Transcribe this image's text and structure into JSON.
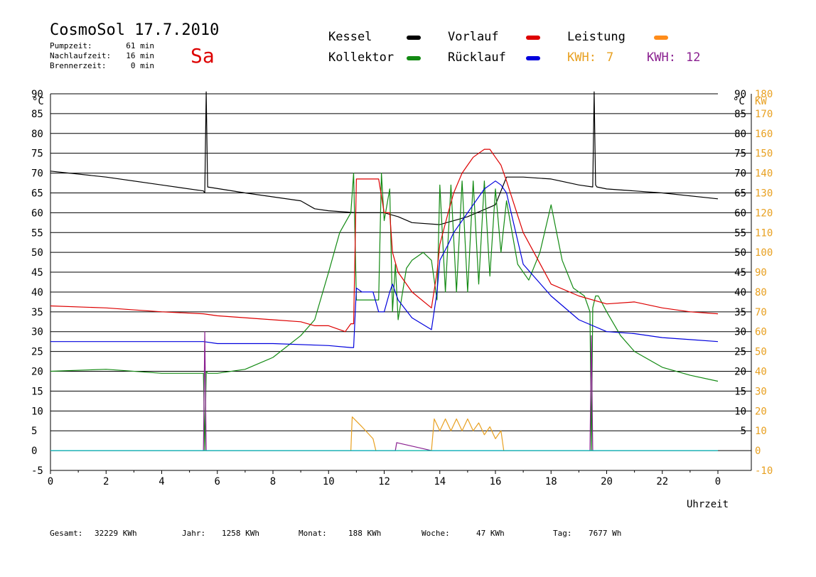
{
  "header": {
    "title": "CosmoSol 17.7.2010",
    "weekday": "Sa",
    "stats": [
      {
        "label": "Pumpzeit:",
        "value": "61 min"
      },
      {
        "label": "Nachlaufzeit:",
        "value": "16 min"
      },
      {
        "label": "Brennerzeit:",
        "value": "0 min"
      }
    ]
  },
  "legend": {
    "kessel": {
      "label": "Kessel",
      "color": "#000000"
    },
    "vorlauf": {
      "label": "Vorlauf",
      "color": "#dd0000"
    },
    "leistung": {
      "label": "Leistung",
      "color": "#ff8c1a"
    },
    "kollektor": {
      "label": "Kollektor",
      "color": "#138a13"
    },
    "ruecklauf": {
      "label": "Rücklauf",
      "color": "#0000dd"
    },
    "kwh1": {
      "label": "KWH:",
      "value": "7",
      "color": "#e8a020"
    },
    "kwh2": {
      "label": "KWH:",
      "value": "12",
      "color": "#8a2090"
    }
  },
  "footer": [
    {
      "label": "Gesamt:",
      "value": "32229 KWh"
    },
    {
      "label": "Jahr:",
      "value": "1258 KWh"
    },
    {
      "label": "Monat:",
      "value": "188 KWh"
    },
    {
      "label": "Woche:",
      "value": "47 KWh"
    },
    {
      "label": "Tag:",
      "value": "7677 Wh"
    }
  ],
  "chart_data": {
    "type": "line",
    "xlabel": "Uhrzeit",
    "ylabel_left": "°C",
    "ylabel_right_c": "°C",
    "ylabel_right_kw": "KW",
    "xlim": [
      0,
      24
    ],
    "ylim": [
      -5,
      90
    ],
    "x_tick_labels": [
      "0",
      "2",
      "4",
      "6",
      "8",
      "10",
      "12",
      "14",
      "16",
      "18",
      "20",
      "22",
      "0"
    ],
    "y_ticks": [
      -5,
      0,
      5,
      10,
      15,
      20,
      25,
      30,
      35,
      40,
      45,
      50,
      55,
      60,
      65,
      70,
      75,
      80,
      85,
      90
    ],
    "right_c_ticks": [
      5,
      10,
      15,
      20,
      25,
      30,
      35,
      40,
      45,
      50,
      55,
      60,
      65,
      70,
      75,
      80,
      85,
      90
    ],
    "right_kw_ticks": [
      -10,
      0,
      10,
      20,
      30,
      40,
      50,
      60,
      70,
      80,
      90,
      100,
      110,
      120,
      130,
      140,
      150,
      160,
      170,
      180
    ],
    "grid": true,
    "series": [
      {
        "key": "kessel",
        "color": "#000000",
        "x": [
          0,
          2,
          4,
          5.5,
          5.55,
          5.6,
          5.65,
          7,
          9,
          9.5,
          10,
          11,
          12,
          12.5,
          13,
          14,
          15,
          16,
          16.4,
          17,
          18,
          19,
          19.5,
          19.55,
          19.6,
          19.65,
          20,
          22,
          24
        ],
        "y": [
          70.5,
          69,
          67,
          65.5,
          65,
          90.5,
          66.5,
          65,
          63,
          61,
          60.5,
          60,
          60,
          59,
          57.5,
          57,
          59,
          62,
          69,
          69,
          68.5,
          67,
          66.5,
          90.5,
          67,
          66.5,
          66,
          65,
          63.5
        ]
      },
      {
        "key": "kollektor",
        "color": "#138a13",
        "x": [
          0,
          2,
          4,
          5.5,
          5.55,
          5.6,
          5.65,
          6,
          7,
          8,
          9,
          9.5,
          10,
          10.4,
          10.8,
          10.9,
          11,
          11.2,
          11.8,
          11.9,
          12,
          12.2,
          12.3,
          12.4,
          12.5,
          12.8,
          13,
          13.4,
          13.7,
          13.9,
          14,
          14.2,
          14.4,
          14.6,
          14.8,
          15,
          15.2,
          15.4,
          15.6,
          15.8,
          16,
          16.2,
          16.4,
          16.8,
          17.2,
          17.6,
          18,
          18.4,
          18.8,
          19.2,
          19.4,
          19.45,
          19.5,
          19.6,
          19.7,
          20,
          20.5,
          21,
          22,
          23,
          24
        ],
        "y": [
          20,
          20.5,
          19.5,
          19.5,
          0,
          20,
          19.5,
          19.5,
          20.5,
          23.5,
          29,
          33,
          45,
          55,
          60,
          70,
          38,
          38,
          38,
          70,
          58,
          66,
          35,
          47,
          33,
          46,
          48,
          50,
          48,
          38,
          67,
          40,
          67,
          40,
          68,
          40,
          68,
          42,
          68,
          44,
          66,
          50,
          63,
          47,
          43,
          50,
          62,
          48,
          41,
          39,
          35,
          0,
          36,
          39,
          39,
          35,
          29,
          25,
          21,
          19,
          17.5
        ]
      },
      {
        "key": "vorlauf",
        "color": "#dd0000",
        "x": [
          0,
          2,
          4,
          5.5,
          6,
          8,
          9,
          9.5,
          10,
          10.6,
          10.8,
          10.9,
          11,
          11.5,
          11.8,
          12,
          12.2,
          12.3,
          12.5,
          13,
          13.7,
          13.9,
          14,
          14.3,
          14.5,
          14.8,
          15,
          15.2,
          15.4,
          15.6,
          15.8,
          16,
          16.2,
          16.4,
          17,
          18,
          19,
          20,
          21,
          22,
          23,
          24
        ],
        "y": [
          36.5,
          36,
          35,
          34.5,
          34,
          33,
          32.5,
          31.5,
          31.5,
          30,
          32,
          32,
          68.5,
          68.5,
          68.5,
          60,
          60,
          50,
          45,
          40,
          36,
          45,
          52,
          60,
          65,
          70,
          72,
          74,
          75,
          76,
          76,
          74,
          72,
          68,
          55,
          42,
          39,
          37,
          37.5,
          36,
          35,
          34.5
        ]
      },
      {
        "key": "ruecklauf",
        "color": "#0000dd",
        "x": [
          0,
          2,
          4,
          5.5,
          6,
          8,
          10,
          10.8,
          10.9,
          11,
          11.2,
          11.6,
          11.8,
          12,
          12.2,
          12.3,
          12.5,
          13,
          13.7,
          13.9,
          14,
          14.3,
          14.5,
          14.8,
          15,
          15.2,
          15.4,
          15.6,
          15.8,
          16,
          16.2,
          16.4,
          17,
          18,
          19,
          20,
          21,
          22,
          23,
          24
        ],
        "y": [
          27.5,
          27.5,
          27.5,
          27.5,
          27,
          27,
          26.5,
          26,
          26,
          41,
          40,
          40,
          35,
          35,
          40,
          42,
          38,
          33.5,
          30.5,
          40,
          48,
          52,
          55,
          58,
          60,
          62,
          64,
          66,
          67,
          68,
          67,
          65,
          47,
          39,
          33,
          30,
          29.5,
          28.5,
          28,
          27.5
        ]
      },
      {
        "key": "leistung",
        "color": "#e8a020",
        "x": [
          0,
          10.8,
          10.85,
          11.2,
          11.6,
          11.7,
          13.7,
          13.8,
          14,
          14.2,
          14.4,
          14.6,
          14.8,
          15,
          15.2,
          15.4,
          15.6,
          15.8,
          16,
          16.2,
          16.3,
          24
        ],
        "y": [
          0,
          0,
          8.5,
          6,
          3,
          0,
          0,
          8,
          5,
          8,
          5,
          8,
          5,
          8,
          5,
          7,
          4,
          6,
          3,
          5,
          0,
          0
        ]
      },
      {
        "key": "kwh-violet",
        "color": "#8a2090",
        "x": [
          0,
          5.5,
          5.55,
          5.6,
          5.65,
          10.8,
          12.4,
          12.45,
          13.7,
          16.5,
          19.4,
          19.45,
          19.5,
          19.55,
          24
        ],
        "y": [
          0,
          0,
          30,
          0,
          0,
          0,
          0,
          2,
          0,
          0,
          0,
          29,
          0,
          0,
          0
        ]
      },
      {
        "key": "null-line",
        "color": "#00c0c0",
        "x": [
          0,
          24
        ],
        "y": [
          0,
          0
        ]
      }
    ]
  }
}
